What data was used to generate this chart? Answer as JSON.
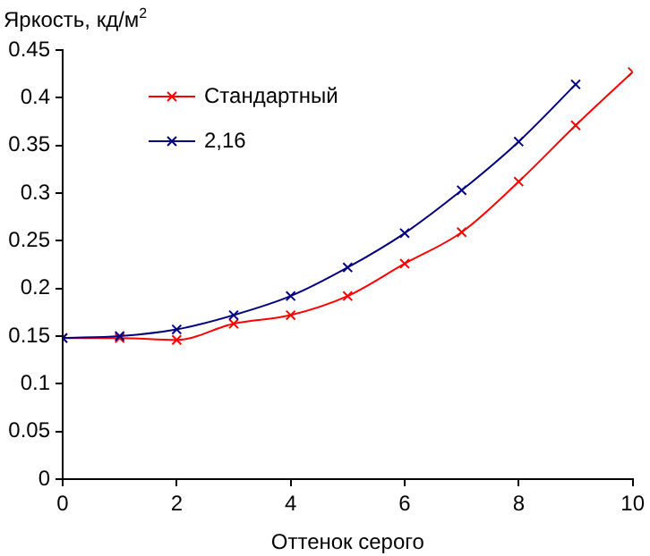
{
  "chart_data": {
    "type": "line",
    "ylabel": "Яркость, кд/м$^{2}$",
    "xlabel": "Оттенок серого",
    "x": [
      0,
      1,
      2,
      3,
      4,
      5,
      6,
      7,
      8,
      9,
      10
    ],
    "series": [
      {
        "name": "Стандартный",
        "color": "#ff0000",
        "values": [
          0.148,
          0.148,
          0.146,
          0.163,
          0.172,
          0.192,
          0.226,
          0.259,
          0.312,
          0.371,
          0.427
        ]
      },
      {
        "name": "2,16",
        "color": "#000080",
        "values": [
          0.148,
          0.15,
          0.157,
          0.172,
          0.192,
          0.222,
          0.258,
          0.303,
          0.354,
          0.414,
          null
        ]
      }
    ],
    "xlim": [
      0,
      10
    ],
    "xticks": [
      0,
      2,
      4,
      6,
      8,
      10
    ],
    "ylim": [
      0,
      0.45
    ],
    "yticks": [
      0,
      0.05,
      0.1,
      0.15,
      0.2,
      0.25,
      0.3,
      0.35,
      0.4,
      0.45
    ],
    "grid": false,
    "legend": "top left",
    "marker": "cross",
    "line_style": "solid"
  }
}
